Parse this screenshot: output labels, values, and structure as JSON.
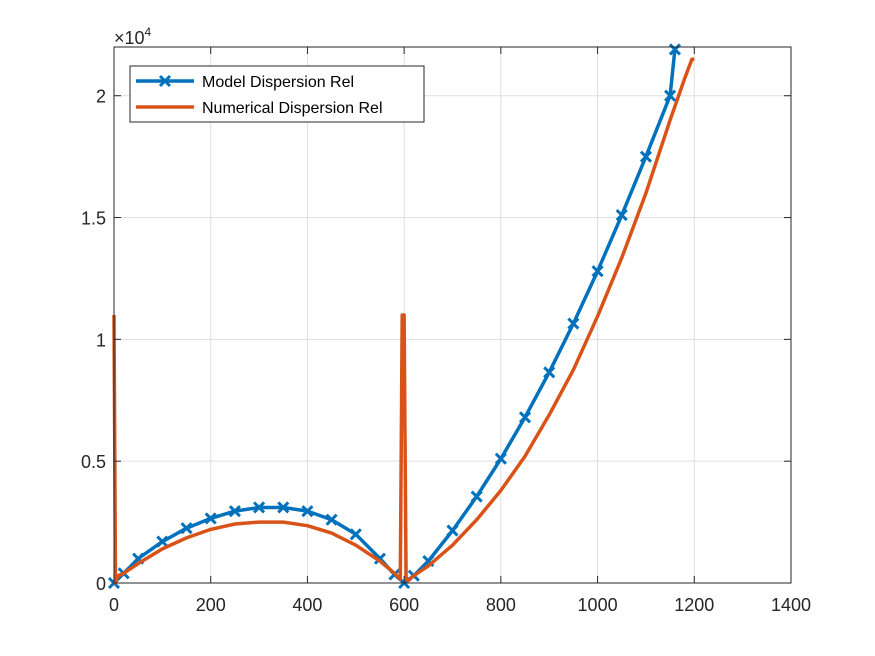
{
  "chart_data": {
    "type": "line",
    "title": "",
    "xlabel": "",
    "ylabel": "",
    "xlim": [
      0,
      1400
    ],
    "ylim": [
      0,
      22000
    ],
    "y_exponent_label": "×10",
    "y_exponent_power": "4",
    "x_ticks": [
      0,
      200,
      400,
      600,
      800,
      1000,
      1200,
      1400
    ],
    "x_tick_labels": [
      "0",
      "200",
      "400",
      "600",
      "800",
      "1000",
      "1200",
      "1400"
    ],
    "y_ticks": [
      0,
      5000,
      10000,
      15000,
      20000
    ],
    "y_tick_labels": [
      "0",
      "0.5",
      "1",
      "1.5",
      "2"
    ],
    "grid": true,
    "legend_position": "top-left",
    "series": [
      {
        "name": "Model Dispersion Rel",
        "color": "#0072BD",
        "marker": "x",
        "x": [
          0,
          20,
          50,
          100,
          150,
          200,
          250,
          300,
          350,
          400,
          450,
          500,
          550,
          580,
          600,
          620,
          650,
          700,
          750,
          800,
          850,
          900,
          950,
          1000,
          1050,
          1100,
          1150,
          1160
        ],
        "y": [
          0,
          400,
          1000,
          1700,
          2250,
          2650,
          2950,
          3100,
          3100,
          2950,
          2600,
          2000,
          1000,
          350,
          0,
          300,
          900,
          2150,
          3550,
          5100,
          6800,
          8650,
          10650,
          12800,
          15100,
          17500,
          20000,
          21900
        ]
      },
      {
        "name": "Numerical Dispersion Rel",
        "color": "#D95319",
        "marker": "none",
        "x": [
          0,
          3,
          8,
          20,
          50,
          100,
          150,
          200,
          250,
          300,
          350,
          400,
          450,
          500,
          550,
          580,
          592,
          596,
          600,
          604,
          608,
          620,
          650,
          700,
          750,
          800,
          850,
          900,
          950,
          1000,
          1050,
          1100,
          1150,
          1180,
          1195,
          1200
        ],
        "y": [
          11000,
          0,
          300,
          400,
          800,
          1400,
          1850,
          2200,
          2420,
          2500,
          2500,
          2350,
          2050,
          1550,
          900,
          400,
          150,
          11000,
          11000,
          150,
          100,
          300,
          700,
          1550,
          2600,
          3800,
          5200,
          6900,
          8750,
          10950,
          13350,
          16000,
          19000,
          20700,
          21500,
          21500
        ]
      }
    ]
  }
}
